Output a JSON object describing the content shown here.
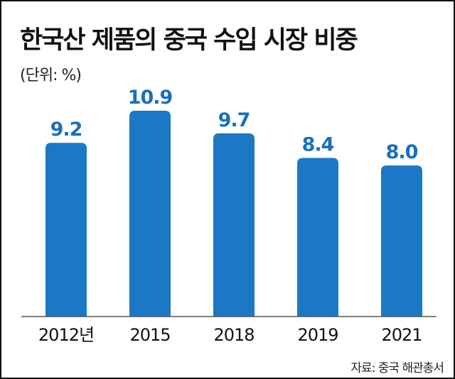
{
  "title": "한국산 제품의 중국 수입 시장 비중",
  "unit": "(단위: %)",
  "source": "자료: 중국 해관총서",
  "colors": {
    "bar": "#1b78c4",
    "value_label": "#1b6fb8",
    "axis": "#555555"
  },
  "chart_data": {
    "type": "bar",
    "title": "한국산 제품의 중국 수입 시장 비중",
    "categories": [
      "2012년",
      "2015",
      "2018",
      "2019",
      "2021"
    ],
    "values": [
      9.2,
      10.9,
      9.7,
      8.4,
      8.0
    ],
    "value_labels": [
      "9.2",
      "10.9",
      "9.7",
      "8.4",
      "8.0"
    ],
    "ylabel": "(단위: %)",
    "ylim": [
      0,
      10.9
    ],
    "grid": false,
    "legend": "none"
  }
}
